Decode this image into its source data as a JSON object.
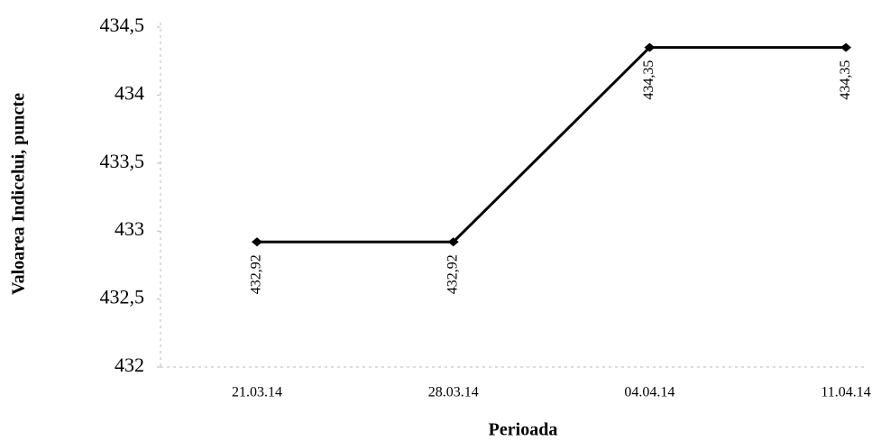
{
  "chart_data": {
    "type": "line",
    "x_label": "Perioada",
    "y_label": "Valoarea Indicelui, puncte",
    "categories": [
      "21.03.14",
      "28.03.14",
      "04.04.14",
      "11.04.14"
    ],
    "series": [
      {
        "name": "Valoarea Indicelui",
        "color": "#000000",
        "values": [
          432.92,
          432.92,
          434.35,
          434.35
        ],
        "value_labels": [
          "432,92",
          "432,92",
          "434,35",
          "434,35"
        ]
      }
    ],
    "ylim": [
      432,
      434.5
    ],
    "yticks": [
      432,
      {
        "value": 432.5,
        "label": "432,5"
      },
      433,
      {
        "value": 433.5,
        "label": "433,5"
      },
      434,
      {
        "value": 434.5,
        "label": "434,5"
      }
    ],
    "grid": false
  }
}
